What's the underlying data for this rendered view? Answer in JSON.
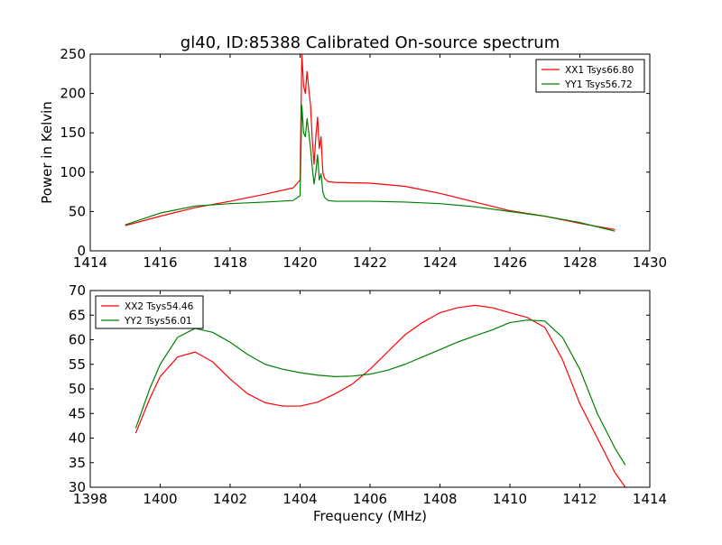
{
  "chart_data": [
    {
      "type": "line",
      "title": "gl40, ID:85388 Calibrated On-source spectrum",
      "xlabel": "",
      "ylabel": "Power in Kelvin",
      "xlim": [
        1414,
        1430
      ],
      "ylim": [
        0,
        250
      ],
      "xticks": [
        1414,
        1416,
        1418,
        1420,
        1422,
        1424,
        1426,
        1428,
        1430
      ],
      "yticks": [
        0,
        50,
        100,
        150,
        200,
        250
      ],
      "grid": false,
      "legend_position": "top-right",
      "series": [
        {
          "name": "XX1 Tsys66.80",
          "color": "#ff0000",
          "x": [
            1415.0,
            1416.0,
            1417.0,
            1418.0,
            1419.0,
            1419.8,
            1420.0,
            1420.05,
            1420.1,
            1420.15,
            1420.2,
            1420.25,
            1420.3,
            1420.35,
            1420.4,
            1420.45,
            1420.5,
            1420.55,
            1420.6,
            1420.65,
            1420.7,
            1420.8,
            1421.0,
            1422.0,
            1423.0,
            1424.0,
            1425.0,
            1426.0,
            1427.0,
            1428.0,
            1429.0
          ],
          "y": [
            32,
            44,
            55,
            63,
            72,
            80,
            90,
            250,
            210,
            200,
            228,
            205,
            185,
            140,
            110,
            145,
            170,
            130,
            145,
            100,
            92,
            88,
            87,
            86,
            82,
            73,
            62,
            51,
            44,
            35,
            27
          ]
        },
        {
          "name": "YY1 Tsys56.72",
          "color": "#008000",
          "x": [
            1415.0,
            1416.0,
            1417.0,
            1418.0,
            1419.0,
            1419.8,
            1420.0,
            1420.05,
            1420.1,
            1420.15,
            1420.2,
            1420.25,
            1420.3,
            1420.35,
            1420.4,
            1420.45,
            1420.5,
            1420.55,
            1420.6,
            1420.65,
            1420.7,
            1420.8,
            1421.0,
            1422.0,
            1423.0,
            1424.0,
            1425.0,
            1426.0,
            1427.0,
            1428.0,
            1429.0
          ],
          "y": [
            33,
            48,
            57,
            60,
            62,
            64,
            70,
            185,
            150,
            145,
            168,
            150,
            130,
            105,
            85,
            100,
            122,
            90,
            98,
            75,
            68,
            64,
            63,
            63,
            62,
            60,
            56,
            50,
            44,
            36,
            25
          ]
        }
      ]
    },
    {
      "type": "line",
      "title": "",
      "xlabel": "Frequency (MHz)",
      "ylabel": "",
      "xlim": [
        1398,
        1414
      ],
      "ylim": [
        30,
        70
      ],
      "xticks": [
        1398,
        1400,
        1402,
        1404,
        1406,
        1408,
        1410,
        1412,
        1414
      ],
      "yticks": [
        30,
        35,
        40,
        45,
        50,
        55,
        60,
        65,
        70
      ],
      "grid": false,
      "legend_position": "top-left",
      "series": [
        {
          "name": "XX2 Tsys54.46",
          "color": "#ff0000",
          "x": [
            1399.3,
            1399.7,
            1400.0,
            1400.5,
            1401.0,
            1401.5,
            1402.0,
            1402.5,
            1403.0,
            1403.5,
            1404.0,
            1404.5,
            1405.0,
            1405.5,
            1406.0,
            1406.5,
            1407.0,
            1407.5,
            1408.0,
            1408.5,
            1409.0,
            1409.5,
            1410.0,
            1410.5,
            1411.0,
            1411.5,
            1412.0,
            1412.5,
            1413.0,
            1413.3
          ],
          "y": [
            41,
            48,
            52.5,
            56.5,
            57.5,
            55.5,
            52,
            49,
            47.2,
            46.5,
            46.5,
            47.3,
            49,
            51,
            54,
            57.5,
            61,
            63.5,
            65.5,
            66.5,
            67,
            66.5,
            65.5,
            64.5,
            62.5,
            56,
            47,
            40,
            33,
            30
          ]
        },
        {
          "name": "YY2 Tsys56.01",
          "color": "#008000",
          "x": [
            1399.3,
            1399.7,
            1400.0,
            1400.5,
            1401.0,
            1401.5,
            1402.0,
            1402.5,
            1403.0,
            1403.5,
            1404.0,
            1404.5,
            1405.0,
            1405.5,
            1406.0,
            1406.5,
            1407.0,
            1407.5,
            1408.0,
            1408.5,
            1409.0,
            1409.5,
            1410.0,
            1410.5,
            1411.0,
            1411.5,
            1412.0,
            1412.5,
            1413.0,
            1413.3
          ],
          "y": [
            42,
            50,
            55,
            60.5,
            62.3,
            61.5,
            59.5,
            57,
            55,
            54,
            53.3,
            52.8,
            52.5,
            52.6,
            53,
            53.8,
            55,
            56.5,
            58,
            59.5,
            60.8,
            62,
            63.5,
            64,
            63.8,
            60.5,
            54,
            45,
            38,
            34.5
          ]
        }
      ]
    }
  ]
}
